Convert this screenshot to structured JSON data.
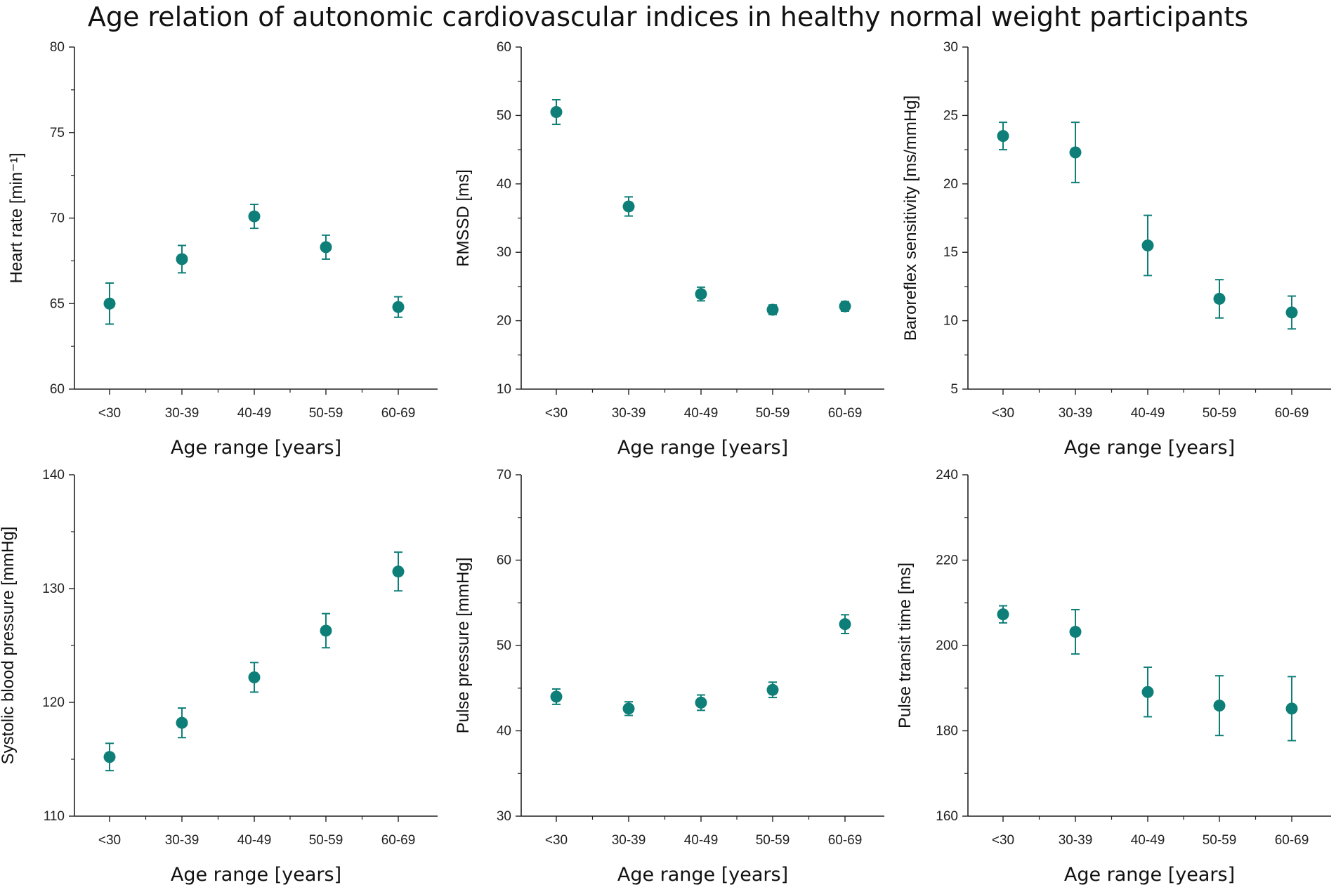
{
  "title": "Age relation of autonomic cardiovascular indices in healthy normal weight participants",
  "colors": {
    "marker": "#0e7f78",
    "axis": "#222222"
  },
  "chart_data": [
    {
      "type": "scatter",
      "xlabel": "Age range [years]",
      "ylabel": "Heart rate [min⁻¹]",
      "ylim": [
        60,
        80
      ],
      "yticks": [
        60,
        65,
        70,
        75,
        80
      ],
      "categories": [
        "<30",
        "30-39",
        "40-49",
        "50-59",
        "60-69"
      ],
      "values": [
        65.0,
        67.6,
        70.1,
        68.3,
        64.8
      ],
      "errors": [
        1.2,
        0.8,
        0.7,
        0.7,
        0.6
      ]
    },
    {
      "type": "scatter",
      "xlabel": "Age range [years]",
      "ylabel": "RMSSD [ms]",
      "ylim": [
        10,
        60
      ],
      "yticks": [
        10,
        20,
        30,
        40,
        50,
        60
      ],
      "categories": [
        "<30",
        "30-39",
        "40-49",
        "50-59",
        "60-69"
      ],
      "values": [
        50.5,
        36.7,
        23.9,
        21.6,
        22.1
      ],
      "errors": [
        1.8,
        1.4,
        1.0,
        0.7,
        0.7
      ]
    },
    {
      "type": "scatter",
      "xlabel": "Age range [years]",
      "ylabel": "Baroreflex sensitivity [ms/mmHg]",
      "ylim": [
        5,
        30
      ],
      "yticks": [
        5,
        10,
        15,
        20,
        25,
        30
      ],
      "categories": [
        "<30",
        "30-39",
        "40-49",
        "50-59",
        "60-69"
      ],
      "values": [
        23.5,
        22.3,
        15.5,
        11.6,
        10.6
      ],
      "errors": [
        1.0,
        2.2,
        2.2,
        1.4,
        1.2
      ]
    },
    {
      "type": "scatter",
      "xlabel": "Age range [years]",
      "ylabel": "Systolic blood pressure [mmHg]",
      "ylim": [
        110,
        140
      ],
      "yticks": [
        110,
        120,
        130,
        140
      ],
      "categories": [
        "<30",
        "30-39",
        "40-49",
        "50-59",
        "60-69"
      ],
      "values": [
        115.2,
        118.2,
        122.2,
        126.3,
        131.5
      ],
      "errors": [
        1.2,
        1.3,
        1.3,
        1.5,
        1.7
      ]
    },
    {
      "type": "scatter",
      "xlabel": "Age range [years]",
      "ylabel": "Pulse pressure [mmHg]",
      "ylim": [
        30,
        70
      ],
      "yticks": [
        30,
        40,
        50,
        60,
        70
      ],
      "categories": [
        "<30",
        "30-39",
        "40-49",
        "50-59",
        "60-69"
      ],
      "values": [
        44.0,
        42.6,
        43.3,
        44.8,
        52.5
      ],
      "errors": [
        0.9,
        0.8,
        0.9,
        0.9,
        1.1
      ]
    },
    {
      "type": "scatter",
      "xlabel": "Age range [years]",
      "ylabel": "Pulse transit time [ms]",
      "ylim": [
        160,
        240
      ],
      "yticks": [
        160,
        180,
        200,
        220,
        240
      ],
      "categories": [
        "<30",
        "30-39",
        "40-49",
        "50-59",
        "60-69"
      ],
      "values": [
        207.3,
        203.2,
        189.1,
        185.9,
        185.2
      ],
      "errors": [
        2.0,
        5.2,
        5.8,
        7.0,
        7.5
      ]
    }
  ]
}
